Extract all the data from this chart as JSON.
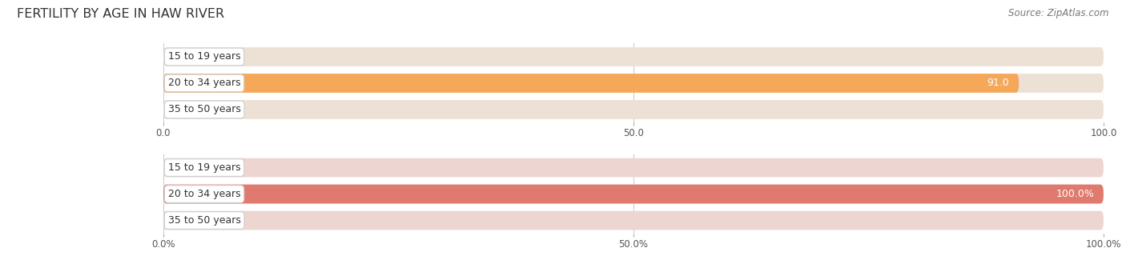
{
  "title": "FERTILITY BY AGE IN HAW RIVER",
  "source": "Source: ZipAtlas.com",
  "top_chart": {
    "categories": [
      "15 to 19 years",
      "20 to 34 years",
      "35 to 50 years"
    ],
    "values": [
      0.0,
      91.0,
      0.0
    ],
    "xlim": [
      0,
      100
    ],
    "xticks": [
      0.0,
      50.0,
      100.0
    ],
    "bar_color": "#F5A85A",
    "bar_bg_color": "#EDE0D4",
    "bar_label_color_inside": "#FFFFFF",
    "bar_label_color_outside": "#555555",
    "value_threshold": 50
  },
  "bottom_chart": {
    "categories": [
      "15 to 19 years",
      "20 to 34 years",
      "35 to 50 years"
    ],
    "values": [
      0.0,
      100.0,
      0.0
    ],
    "xlim": [
      0,
      100
    ],
    "xticks": [
      0.0,
      50.0,
      100.0
    ],
    "bar_color": "#E07A6E",
    "bar_bg_color": "#EDD5D2",
    "bar_label_color_inside": "#FFFFFF",
    "bar_label_color_outside": "#555555",
    "value_threshold": 50
  },
  "label_fontsize": 9,
  "tick_fontsize": 8.5,
  "title_fontsize": 11.5,
  "source_fontsize": 8.5,
  "bg_color": "#FFFFFF",
  "grid_color": "#CCCCCC",
  "bar_height": 0.72,
  "label_bg_color": "#FFFFFF",
  "label_border_color": "#CCCCCC"
}
